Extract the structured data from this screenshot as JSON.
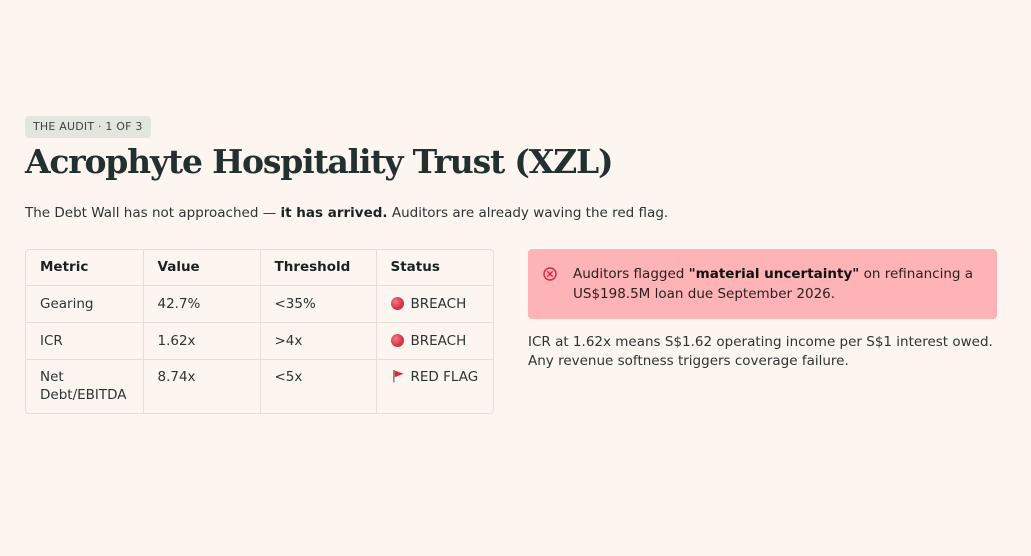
{
  "header": {
    "badge": "THE AUDIT · 1 OF 3",
    "title": "Acrophyte Hospitality Trust (XZL)",
    "subtitle_prefix": "The Debt Wall has not approached — ",
    "subtitle_bold": "it has arrived.",
    "subtitle_suffix": " Auditors are already waving the red flag."
  },
  "table": {
    "headers": [
      "Metric",
      "Value",
      "Threshold",
      "Status"
    ],
    "rows": [
      {
        "metric": "Gearing",
        "value": "42.7%",
        "threshold": "<35%",
        "status": "BREACH",
        "status_icon": "red-circle-icon"
      },
      {
        "metric": "ICR",
        "value": "1.62x",
        "threshold": ">4x",
        "status": "BREACH",
        "status_icon": "red-circle-icon"
      },
      {
        "metric": "Net Debt/EBITDA",
        "value": "8.74x",
        "threshold": "<5x",
        "status": "RED FLAG",
        "status_icon": "red-flag-icon"
      }
    ]
  },
  "alert": {
    "icon": "error-circle-icon",
    "prefix": "Auditors flagged ",
    "bold": "\"material uncertainty\"",
    "suffix": " on refinancing a US$198.5M loan due September 2026."
  },
  "note": "ICR at 1.62x means S$1.62 operating income per S$1 interest owed. Any revenue softness triggers coverage failure.",
  "colors": {
    "background": "#fdf6f0",
    "alert_background": "#feb3b6",
    "alert_icon": "#d6283a",
    "badge_background": "#e3e6dc",
    "breach": "#d9384a"
  }
}
